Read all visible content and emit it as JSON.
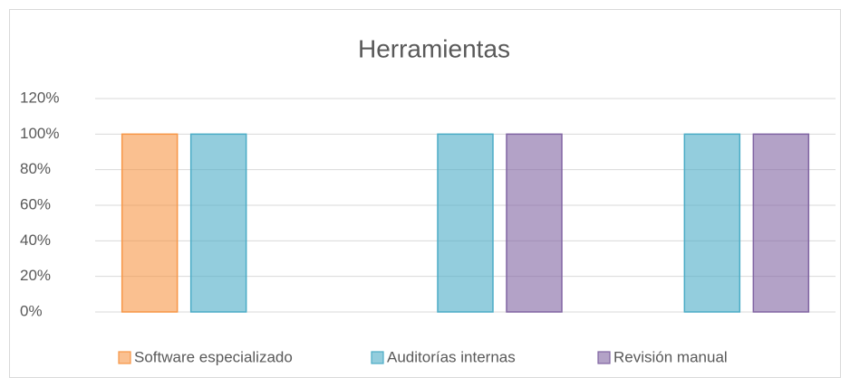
{
  "chart_data": {
    "type": "bar",
    "title": "Herramientas",
    "categories": [
      null,
      null,
      null
    ],
    "series": [
      {
        "name": "Software especializado",
        "color": "#f79646",
        "values": [
          100,
          null,
          null
        ]
      },
      {
        "name": "Auditorías internas",
        "color": "#4bacc6",
        "values": [
          100,
          100,
          100
        ]
      },
      {
        "name": "Revisión manual",
        "color": "#8064a2",
        "values": [
          null,
          100,
          100
        ]
      }
    ],
    "ylim": [
      0,
      120
    ],
    "yticks": [
      {
        "value": 0,
        "label": "0%"
      },
      {
        "value": 20,
        "label": "20%"
      },
      {
        "value": 40,
        "label": "40%"
      },
      {
        "value": 60,
        "label": "60%"
      },
      {
        "value": 80,
        "label": "80%"
      },
      {
        "value": 100,
        "label": "100%"
      },
      {
        "value": 120,
        "label": "120%"
      }
    ],
    "grid": true,
    "legend": "bottom"
  }
}
